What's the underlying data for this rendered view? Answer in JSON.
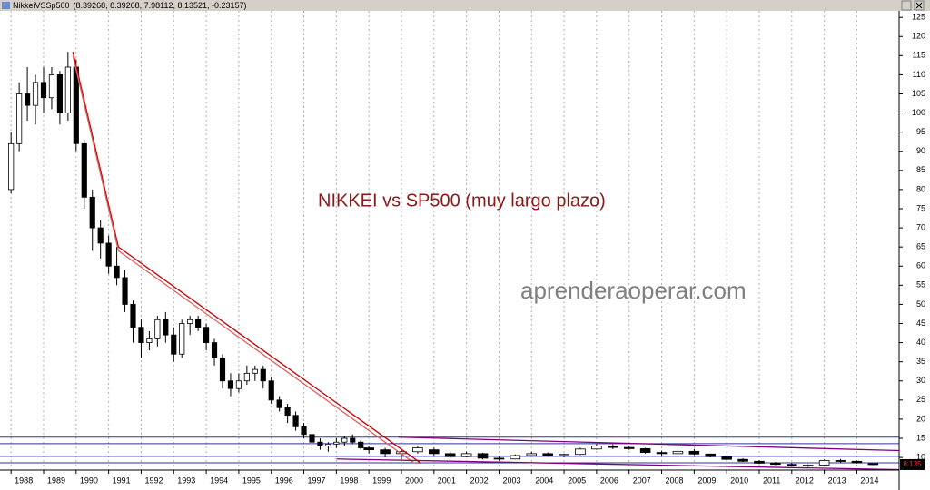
{
  "chart_data": {
    "type": "candlestick",
    "window_title": "NikkeiVSSp500",
    "readout": "(8.39268, 8.39268, 7.98112, 8.13521, -0.23157)",
    "title": "NIKKEI vs SP500 (muy largo plazo)",
    "watermark": "aprenderaoperar.com",
    "last_label": "8.135",
    "xlim": [
      1987.66,
      2015.3
    ],
    "ylim": [
      6.7,
      126.7
    ],
    "xticks": [
      1988,
      1989,
      1990,
      1991,
      1992,
      1993,
      1994,
      1995,
      1996,
      1997,
      1998,
      1999,
      2000,
      2001,
      2002,
      2003,
      2004,
      2005,
      2006,
      2007,
      2008,
      2009,
      2010,
      2011,
      2012,
      2013,
      2014
    ],
    "yticks": [
      10,
      15,
      20,
      25,
      30,
      35,
      40,
      45,
      50,
      55,
      60,
      65,
      70,
      75,
      80,
      85,
      90,
      95,
      100,
      105,
      110,
      115,
      120,
      125
    ],
    "grid": "x",
    "up_color": "#ffffff",
    "down_color": "#000000",
    "x": [
      1988.0,
      1988.25,
      1988.5,
      1988.75,
      1989.0,
      1989.25,
      1989.5,
      1989.75,
      1990.0,
      1990.25,
      1990.5,
      1990.75,
      1991.0,
      1991.25,
      1991.5,
      1991.75,
      1992.0,
      1992.25,
      1992.5,
      1992.75,
      1993.0,
      1993.25,
      1993.5,
      1993.75,
      1994.0,
      1994.25,
      1994.5,
      1994.75,
      1995.0,
      1995.25,
      1995.5,
      1995.75,
      1996.0,
      1996.25,
      1996.5,
      1996.75,
      1997.0,
      1997.25,
      1997.5,
      1997.75,
      1998.0,
      1998.25,
      1998.5,
      1998.75,
      1999.0,
      1999.5,
      2000.0,
      2000.5,
      2001.0,
      2001.5,
      2002.0,
      2002.5,
      2003.0,
      2003.5,
      2004.0,
      2004.5,
      2005.0,
      2005.5,
      2006.0,
      2006.5,
      2007.0,
      2007.5,
      2008.0,
      2008.5,
      2009.0,
      2009.5,
      2010.0,
      2010.5,
      2011.0,
      2011.5,
      2012.0,
      2012.5,
      2013.0,
      2013.5,
      2014.0,
      2014.5
    ],
    "open": [
      80,
      92,
      105,
      102,
      108,
      104,
      110,
      100,
      112,
      92,
      78,
      70,
      66,
      60,
      57,
      50,
      44,
      40,
      41,
      46,
      42,
      37,
      45,
      46,
      44,
      40,
      36,
      30,
      28,
      30,
      32,
      33,
      30,
      25,
      23,
      21,
      18,
      16,
      14,
      13,
      13.5,
      14,
      15,
      14,
      12.5,
      12,
      11,
      11.5,
      12,
      11,
      10.2,
      11,
      9.8,
      9.6,
      10.5,
      11,
      10.5,
      10.8,
      12.2,
      13,
      12.6,
      12.3,
      11.3,
      11,
      11.6,
      10.9,
      10.2,
      9.5,
      9,
      8.5,
      8.2,
      7.8,
      8,
      9.2,
      9,
      8.39268
    ],
    "high": [
      95,
      108,
      112,
      110,
      112,
      112,
      111,
      116,
      114,
      93,
      80,
      72,
      68,
      65,
      59,
      51,
      46,
      43,
      47,
      48,
      44,
      46,
      47,
      47,
      45,
      41,
      37,
      32,
      32,
      34,
      34,
      34,
      31,
      26,
      24,
      22,
      19,
      17,
      15,
      14,
      15,
      15.5,
      16,
      14.5,
      13,
      12.5,
      12,
      13,
      12.5,
      11.5,
      11.5,
      11.2,
      10.2,
      10.8,
      11.5,
      11.3,
      11,
      12.5,
      13.5,
      13.4,
      13,
      12.5,
      11.8,
      12,
      12.2,
      11,
      10.4,
      9.8,
      9.3,
      8.8,
      8.5,
      8.2,
      9.5,
      9.6,
      9.2,
      8.39268
    ],
    "low": [
      79,
      90,
      98,
      97,
      100,
      101,
      97,
      98,
      90,
      75,
      64,
      62,
      58,
      55,
      48,
      40,
      36,
      38,
      39,
      40,
      35,
      36,
      42,
      43,
      38,
      34,
      28,
      26,
      27,
      29,
      30,
      28,
      24,
      22,
      19,
      17,
      15,
      13,
      12,
      11.5,
      12.5,
      13,
      13.5,
      12,
      11,
      10,
      9.5,
      11,
      10.5,
      9.8,
      10,
      9.5,
      9.2,
      9.5,
      10.3,
      10.2,
      10,
      10.6,
      12,
      12.2,
      12,
      11,
      10.5,
      10.8,
      10.6,
      10,
      9.3,
      8.8,
      8.3,
      8,
      7.6,
      7.5,
      7.9,
      8.6,
      8.4,
      7.98112
    ],
    "close": [
      92,
      105,
      102,
      108,
      104,
      110,
      100,
      112,
      92,
      78,
      70,
      66,
      60,
      57,
      50,
      44,
      40,
      41,
      46,
      42,
      37,
      45,
      46,
      44,
      40,
      36,
      30,
      28,
      30,
      32,
      33,
      30,
      25,
      23,
      21,
      18,
      16,
      14,
      13,
      13.5,
      14,
      15,
      14,
      12.5,
      12,
      11,
      11.5,
      12.5,
      11,
      10.2,
      11,
      9.8,
      9.6,
      10.5,
      11,
      10.5,
      10.8,
      12.2,
      13,
      12.6,
      12.3,
      11.3,
      11,
      11.6,
      10.9,
      10.2,
      9.5,
      9,
      8.5,
      8.2,
      7.8,
      8,
      9.2,
      9,
      8.6,
      8.13521
    ],
    "trendlines": [
      {
        "color": "#c00000",
        "x": [
          1989.9,
          1991.3,
          2000.6
        ],
        "y": [
          116,
          65,
          8.5
        ]
      },
      {
        "color": "#e06060",
        "x": [
          1989.9,
          1991.3,
          2000.4
        ],
        "y": [
          115,
          64,
          8.5
        ]
      },
      {
        "color": "#800080",
        "x": [
          1999.9,
          2015.3
        ],
        "y": [
          15.3,
          11.8
        ]
      },
      {
        "color": "#800080",
        "x": [
          1998.0,
          2015.3
        ],
        "y": [
          9.6,
          6.8
        ]
      }
    ],
    "hlines": {
      "color": "#30309a",
      "values": [
        15.3,
        13.6,
        10.3,
        8.6
      ]
    }
  }
}
